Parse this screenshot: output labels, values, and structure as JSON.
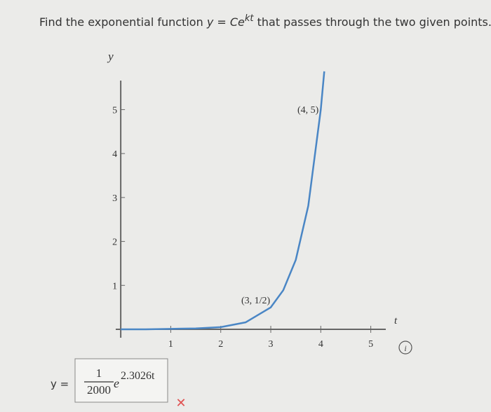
{
  "question": {
    "parts": [
      "Find the exponential function ",
      "y",
      " = ",
      "Ce",
      "kt",
      " that passes through the two given points."
    ]
  },
  "chart_data": {
    "type": "line",
    "x_label": "t",
    "y_label": "y",
    "x": [
      0,
      0.5,
      1,
      1.5,
      2,
      2.5,
      3,
      3.25,
      3.5,
      3.75,
      4,
      4.07
    ],
    "series": [
      {
        "name": "y",
        "color": "#4a86c5",
        "values": [
          0,
          0,
          0.01,
          0.02,
          0.05,
          0.16,
          0.5,
          0.89,
          1.58,
          2.81,
          5,
          5.87
        ]
      }
    ],
    "xlim": [
      -0.1,
      5.3
    ],
    "ylim": [
      0,
      5.9
    ],
    "xticks": [
      1,
      2,
      3,
      4,
      5
    ],
    "yticks": [
      1,
      2,
      3,
      4,
      5
    ],
    "annotations": [
      "(3, 1/2)",
      "(4, 5)"
    ]
  },
  "answer": {
    "lhs": "y =",
    "numerator": "1",
    "denominator": "2000",
    "base": "e",
    "exponent": "2.3026t",
    "status": "✕"
  },
  "info": "i"
}
